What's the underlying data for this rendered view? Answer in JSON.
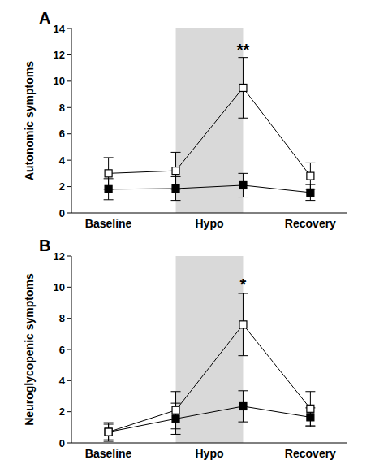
{
  "chart_data": [
    {
      "type": "line",
      "title": "A",
      "y_label": "Autonomic symptoms",
      "x": [
        0,
        1,
        2,
        3
      ],
      "xlim": [
        -0.55,
        3.55
      ],
      "xticks": [
        {
          "value": 0,
          "label": "Baseline"
        },
        {
          "value": 1.5,
          "label": "Hypo"
        },
        {
          "value": 3,
          "label": "Recovery"
        }
      ],
      "ylim": [
        0,
        14
      ],
      "yticks": [
        0,
        2,
        4,
        6,
        8,
        10,
        12,
        14
      ],
      "shaded_region": [
        1,
        2
      ],
      "series": [
        {
          "color": "#000000",
          "marker": "filled_square",
          "values": [
            1.8,
            1.85,
            2.1,
            1.55
          ],
          "error": [
            0.8,
            0.9,
            0.9,
            0.6
          ]
        },
        {
          "color": "#000000",
          "marker": "open_square",
          "values": [
            3.0,
            3.2,
            9.5,
            2.8
          ],
          "error": [
            1.2,
            1.4,
            2.3,
            1.0
          ]
        }
      ],
      "annotations": [
        {
          "text": "**",
          "x": 2,
          "y": 12.4
        }
      ]
    },
    {
      "type": "line",
      "title": "B",
      "y_label": "Neuroglycopenic symptoms",
      "x": [
        0,
        1,
        2,
        3
      ],
      "xlim": [
        -0.55,
        3.55
      ],
      "xticks": [
        {
          "value": 0,
          "label": "Baseline"
        },
        {
          "value": 1.5,
          "label": "Hypo"
        },
        {
          "value": 3,
          "label": "Recovery"
        }
      ],
      "ylim": [
        0,
        12
      ],
      "yticks": [
        0,
        2,
        4,
        6,
        8,
        10,
        12
      ],
      "shaded_region": [
        1,
        2
      ],
      "series": [
        {
          "color": "#000000",
          "marker": "filled_square",
          "values": [
            0.7,
            1.55,
            2.35,
            1.65
          ],
          "error": [
            0.5,
            1.0,
            1.0,
            0.6
          ]
        },
        {
          "color": "#000000",
          "marker": "open_square",
          "values": [
            0.7,
            2.1,
            7.6,
            2.2
          ],
          "error": [
            0.6,
            1.2,
            2.0,
            1.1
          ]
        }
      ],
      "annotations": [
        {
          "text": "*",
          "x": 2,
          "y": 10.2
        }
      ]
    }
  ]
}
